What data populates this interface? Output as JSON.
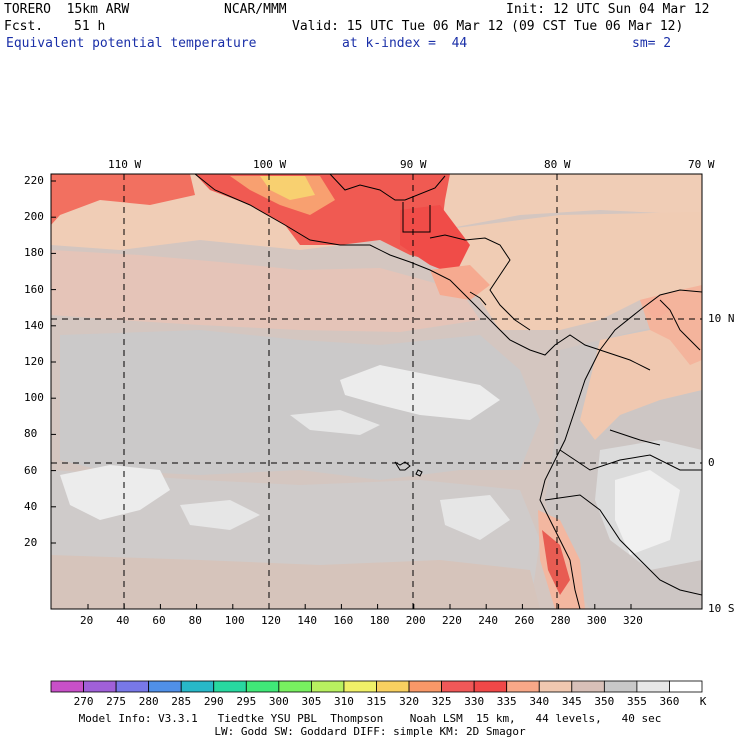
{
  "header": {
    "model": "TORERO  15km ARW",
    "center": "NCAR/MMM",
    "init": "Init: 12 UTC Sun 04 Mar 12",
    "fcst_label": "Fcst.",
    "fcst_value": "51 h",
    "valid": "Valid: 15 UTC Tue 06 Mar 12 (09 CST Tue 06 Mar 12)",
    "field": "Equivalent potential temperature",
    "level": "at k-index =  44",
    "smooth": "sm= 2"
  },
  "map": {
    "lon_labels": [
      "110 W",
      "100 W",
      "90 W",
      "80 W",
      "70 W"
    ],
    "lat_labels": [
      "10 N",
      "0",
      "10 S"
    ],
    "y_ticks": [
      "220",
      "200",
      "180",
      "160",
      "140",
      "120",
      "100",
      "80",
      "60",
      "40",
      "20"
    ],
    "x_ticks": [
      "20",
      "40",
      "60",
      "80",
      "100",
      "120",
      "140",
      "160",
      "180",
      "200",
      "220",
      "240",
      "260",
      "280",
      "300",
      "320"
    ]
  },
  "colorbar": {
    "labels": [
      "270",
      "275",
      "280",
      "285",
      "290",
      "295",
      "300",
      "305",
      "310",
      "315",
      "320",
      "325",
      "330",
      "335",
      "340",
      "345",
      "350",
      "355",
      "360"
    ],
    "unit": "K",
    "colors": [
      "#c850c8",
      "#a060d8",
      "#7878e8",
      "#5090e8",
      "#28b8c8",
      "#28d8a0",
      "#40e878",
      "#78f060",
      "#b8f060",
      "#f0f068",
      "#f8d060",
      "#f89868",
      "#f05858",
      "#f04848",
      "#f8a888",
      "#f0c8b0",
      "#d8c0b8",
      "#c8c8c8",
      "#e8e8e8",
      "#ffffff"
    ]
  },
  "footer": {
    "line1": "Model Info: V3.3.1   Tiedtke YSU PBL  Thompson    Noah LSM  15 km,   44 levels,   40 sec",
    "line2": "LW: Godd SW: Goddard DIFF: simple KM: 2D Smagor"
  }
}
